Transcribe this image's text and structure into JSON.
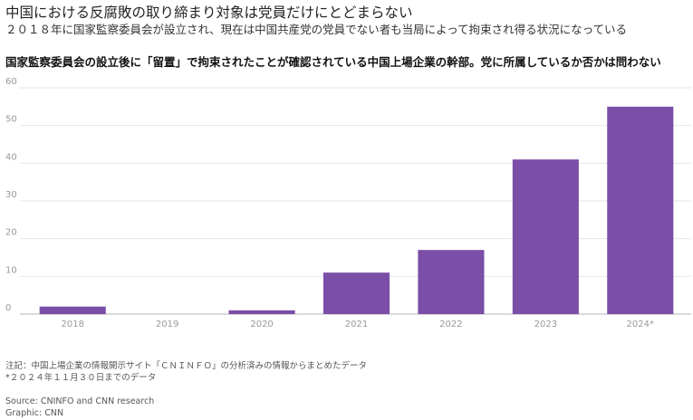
{
  "header": {
    "title": "中国における反腐敗の取り締まり対象は党員だけにとどまらない",
    "subtitle": "２０１８年に国家監察委員会が設立され、現在は中国共産党の党員でない者も当局によって拘束され得る状況になっている"
  },
  "chart_data": {
    "type": "bar",
    "title": "国家監察委員会の設立後に「留置」で拘束されたことが確認されている中国上場企業の幹部。党に所属しているか否かは問わない",
    "xlabel": "",
    "ylabel": "",
    "categories": [
      "2018",
      "2019",
      "2020",
      "2021",
      "2022",
      "2023",
      "2024*"
    ],
    "values": [
      2,
      0,
      1,
      11,
      17,
      41,
      55
    ],
    "ylim": [
      0,
      60
    ],
    "yticks": [
      0,
      10,
      20,
      30,
      40,
      50,
      60
    ],
    "grid": true,
    "bar_color": "#7b4ea8",
    "grid_color": "#e6e6e6",
    "axis_color": "#b5b5b5"
  },
  "footer": {
    "note_line1": "注記：中国上場企業の情報開示サイト「ＣＮＩＮＦＯ」の分析済みの情報からまとめたデータ",
    "note_line2": "*２０２４年１１月３０日までのデータ",
    "source": "Source: CNINFO and CNN research",
    "graphic": "Graphic: CNN"
  }
}
